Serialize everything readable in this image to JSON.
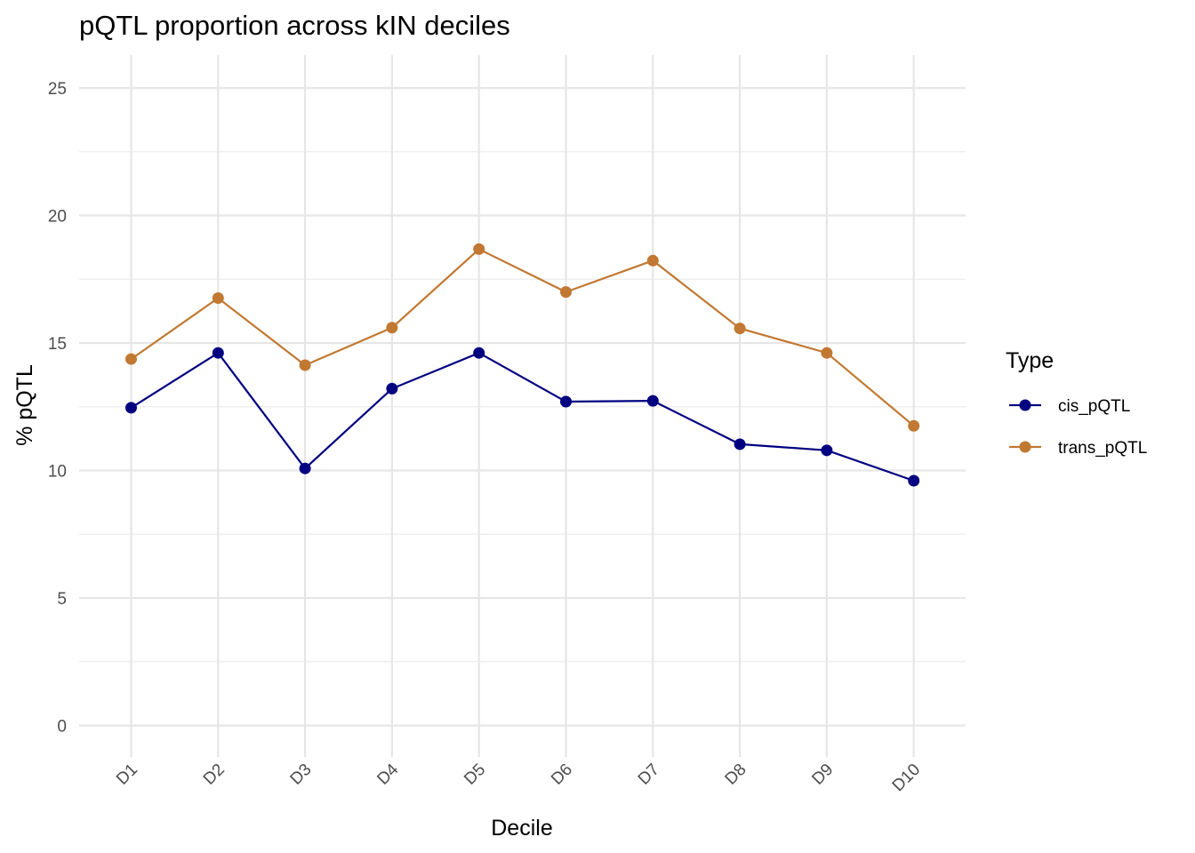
{
  "chart_data": {
    "type": "line",
    "title": "pQTL proportion across kIN deciles",
    "xlabel": "Decile",
    "ylabel": "% pQTL",
    "categories": [
      "D1",
      "D2",
      "D3",
      "D4",
      "D5",
      "D6",
      "D7",
      "D8",
      "D9",
      "D10"
    ],
    "ylim": [
      -1,
      26
    ],
    "yticks": [
      0,
      5,
      10,
      15,
      20,
      25
    ],
    "grid": true,
    "legend": {
      "title": "Type",
      "position": "right"
    },
    "series": [
      {
        "name": "cis_pQTL",
        "color": "#000080",
        "values": [
          12.46,
          14.61,
          10.08,
          13.21,
          14.61,
          12.7,
          12.73,
          11.03,
          10.79,
          9.6
        ]
      },
      {
        "name": "trans_pQTL",
        "color": "#c17832",
        "values": [
          14.37,
          16.76,
          14.13,
          15.6,
          18.68,
          17.0,
          18.23,
          15.57,
          14.61,
          11.75
        ]
      }
    ]
  }
}
